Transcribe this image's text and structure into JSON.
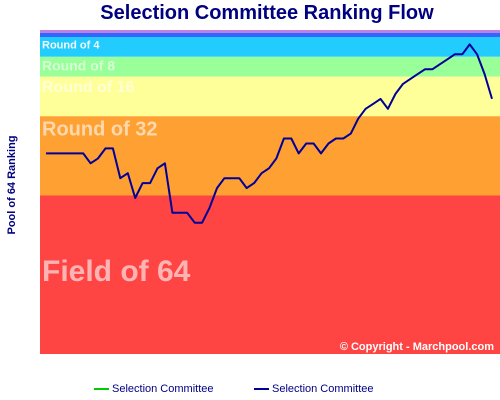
{
  "title": "Selection Committee Ranking Flow",
  "chart_data": {
    "type": "line",
    "title": "Selection Committee Ranking Flow",
    "ylabel": "Pool of 64 Ranking",
    "bands": [
      {
        "label": "Round of 4",
        "from": 1,
        "to": 4,
        "color": "#22ccff"
      },
      {
        "label": "Round of 8",
        "from": 5,
        "to": 8,
        "color": "#99ff99"
      },
      {
        "label": "Round of 16",
        "from": 9,
        "to": 16,
        "color": "#ffff99"
      },
      {
        "label": "Round of 32",
        "from": 17,
        "to": 32,
        "color": "#ffa033"
      },
      {
        "label": "Field of 64",
        "from": 33,
        "to": 64,
        "color": "#ff4444"
      }
    ],
    "ylim": [
      0,
      64
    ],
    "legend": "bottom",
    "series": [
      {
        "name": "Selection Committee",
        "color": "#00cc00",
        "values": []
      },
      {
        "name": "Selection Committee",
        "color": "#000099",
        "values": [
          24,
          24,
          24,
          24,
          24,
          24,
          26,
          25,
          23,
          23,
          29,
          28,
          33,
          30,
          30,
          27,
          26,
          36,
          36,
          36,
          38,
          38,
          35,
          31,
          29,
          29,
          29,
          31,
          30,
          28,
          27,
          25,
          21,
          21,
          24,
          22,
          22,
          24,
          22,
          21,
          21,
          20,
          17,
          15,
          14,
          13,
          15,
          12,
          10,
          9,
          8,
          7,
          7,
          6,
          5,
          4,
          4,
          2,
          4,
          8,
          13
        ]
      }
    ]
  },
  "copyright": "© Copyright - Marchpool.com"
}
